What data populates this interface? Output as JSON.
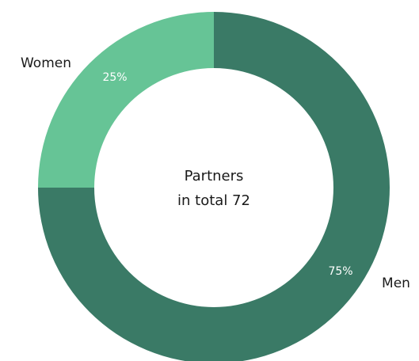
{
  "chart_data": {
    "type": "donut",
    "center_label": [
      "Partners",
      "in total 72"
    ],
    "categories": [
      "Men",
      "Women"
    ],
    "values": [
      75,
      25
    ],
    "value_labels": [
      "75%",
      "25%"
    ],
    "colors": [
      "#3a7a66",
      "#66c496"
    ]
  }
}
